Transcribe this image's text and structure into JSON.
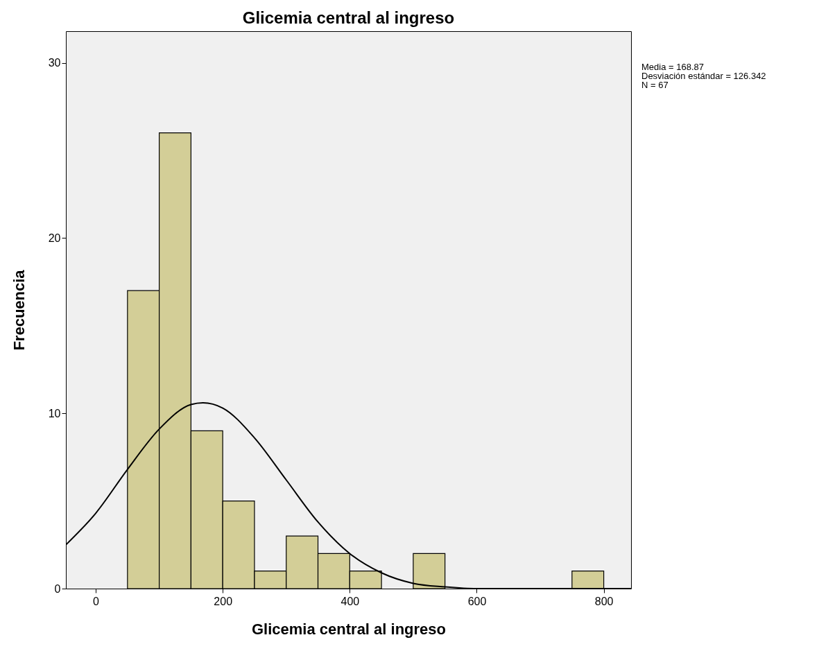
{
  "chart_data": {
    "type": "histogram",
    "title": "Glicemia central al ingreso",
    "xlabel": "Glicemia central al ingreso",
    "ylabel": "Frecuencia",
    "bins": [
      50,
      100,
      150,
      200,
      250,
      300,
      350,
      400,
      450,
      500,
      550,
      600,
      650,
      700,
      750,
      800
    ],
    "series": [
      {
        "type": "histogram",
        "color": "#d3ce97",
        "values": [
          17,
          26,
          9,
          5,
          1,
          3,
          2,
          1,
          0,
          2,
          0,
          0,
          0,
          0,
          1
        ]
      },
      {
        "type": "line",
        "color": "#000000",
        "x": [
          -47,
          0,
          50,
          100,
          150,
          169,
          200,
          250,
          300,
          350,
          400,
          450,
          500,
          550,
          600,
          700,
          843
        ],
        "values": [
          2.5,
          4.3,
          6.8,
          9.1,
          10.5,
          10.6,
          10.3,
          8.6,
          6.2,
          3.8,
          2.0,
          0.9,
          0.3,
          0.1,
          0,
          0,
          0
        ]
      }
    ],
    "xlim": [
      -47,
      843
    ],
    "xticks": [
      0,
      200,
      400,
      600,
      800
    ],
    "ylim": [
      0,
      31.8
    ],
    "yticks": [
      0,
      10,
      20,
      30
    ],
    "annotations": [
      "Media = 168.87",
      "Desviación estándar = 126.342",
      "N = 67"
    ]
  }
}
